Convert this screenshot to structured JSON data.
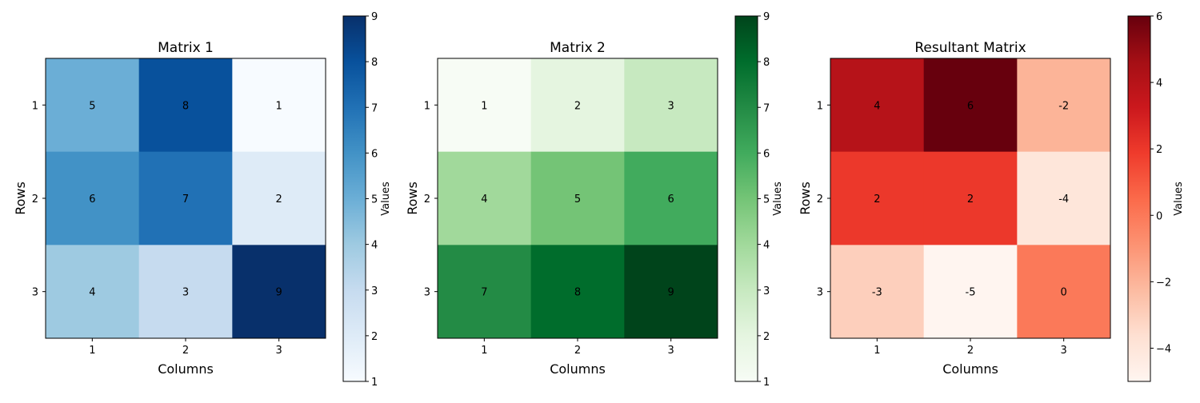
{
  "chart_data": [
    {
      "type": "heatmap",
      "title": "Matrix 1",
      "xlabel": "Columns",
      "ylabel": "Rows",
      "x_ticks": [
        "1",
        "2",
        "3"
      ],
      "y_ticks": [
        "1",
        "2",
        "3"
      ],
      "values": [
        [
          5,
          8,
          1
        ],
        [
          6,
          7,
          2
        ],
        [
          4,
          3,
          9
        ]
      ],
      "colormap": "Blues",
      "colorbar": {
        "label": "Values",
        "range": [
          1,
          9
        ],
        "ticks": [
          "1",
          "2",
          "3",
          "4",
          "5",
          "6",
          "7",
          "8",
          "9"
        ]
      }
    },
    {
      "type": "heatmap",
      "title": "Matrix 2",
      "xlabel": "Columns",
      "ylabel": "Rows",
      "x_ticks": [
        "1",
        "2",
        "3"
      ],
      "y_ticks": [
        "1",
        "2",
        "3"
      ],
      "values": [
        [
          1,
          2,
          3
        ],
        [
          4,
          5,
          6
        ],
        [
          7,
          8,
          9
        ]
      ],
      "colormap": "Greens",
      "colorbar": {
        "label": "Values",
        "range": [
          1,
          9
        ],
        "ticks": [
          "1",
          "2",
          "3",
          "4",
          "5",
          "6",
          "7",
          "8",
          "9"
        ]
      }
    },
    {
      "type": "heatmap",
      "title": "Resultant Matrix",
      "xlabel": "Columns",
      "ylabel": "Rows",
      "x_ticks": [
        "1",
        "2",
        "3"
      ],
      "y_ticks": [
        "1",
        "2",
        "3"
      ],
      "values": [
        [
          4,
          6,
          -2
        ],
        [
          2,
          2,
          -4
        ],
        [
          -3,
          -5,
          0
        ]
      ],
      "colormap": "Reds",
      "colorbar": {
        "label": "Values",
        "range": [
          -5,
          6
        ],
        "ticks": [
          "−4",
          "−2",
          "0",
          "2",
          "4",
          "6"
        ]
      }
    }
  ]
}
